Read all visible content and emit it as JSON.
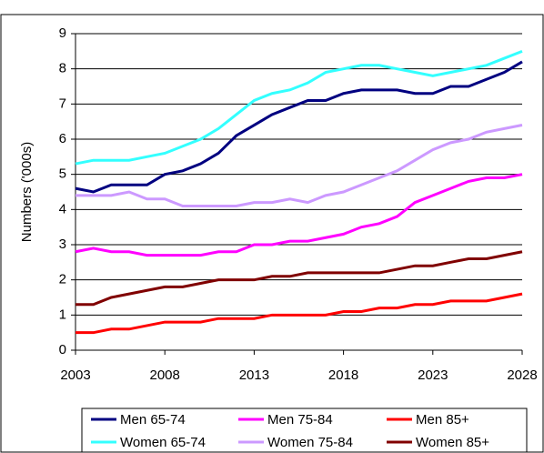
{
  "chart_data": {
    "type": "line",
    "y_label": "Numbers ('000s)",
    "x": [
      2003,
      2004,
      2005,
      2006,
      2007,
      2008,
      2009,
      2010,
      2011,
      2012,
      2013,
      2014,
      2015,
      2016,
      2017,
      2018,
      2019,
      2020,
      2021,
      2022,
      2023,
      2024,
      2025,
      2026,
      2027,
      2028
    ],
    "xlim": [
      2003,
      2028
    ],
    "xticks": [
      2003,
      2008,
      2013,
      2018,
      2023,
      2028
    ],
    "ylim": [
      0,
      9
    ],
    "yticks": [
      0,
      1,
      2,
      3,
      4,
      5,
      6,
      7,
      8,
      9
    ],
    "grid": true,
    "legend": "bottom",
    "series": [
      {
        "name": "Men 65-74",
        "color": "#000080",
        "values": [
          4.6,
          4.5,
          4.7,
          4.7,
          4.7,
          5.0,
          5.1,
          5.3,
          5.6,
          6.1,
          6.4,
          6.7,
          6.9,
          7.1,
          7.1,
          7.3,
          7.4,
          7.4,
          7.4,
          7.3,
          7.3,
          7.5,
          7.5,
          7.7,
          7.9,
          8.2
        ]
      },
      {
        "name": "Men 75-84",
        "color": "#ff00ff",
        "values": [
          2.8,
          2.9,
          2.8,
          2.8,
          2.7,
          2.7,
          2.7,
          2.7,
          2.8,
          2.8,
          3.0,
          3.0,
          3.1,
          3.1,
          3.2,
          3.3,
          3.5,
          3.6,
          3.8,
          4.2,
          4.4,
          4.6,
          4.8,
          4.9,
          4.9,
          5.0
        ]
      },
      {
        "name": "Men 85+",
        "color": "#ff0000",
        "values": [
          0.5,
          0.5,
          0.6,
          0.6,
          0.7,
          0.8,
          0.8,
          0.8,
          0.9,
          0.9,
          0.9,
          1.0,
          1.0,
          1.0,
          1.0,
          1.1,
          1.1,
          1.2,
          1.2,
          1.3,
          1.3,
          1.4,
          1.4,
          1.4,
          1.5,
          1.6
        ]
      },
      {
        "name": "Women 65-74",
        "color": "#33ffff",
        "values": [
          5.3,
          5.4,
          5.4,
          5.4,
          5.5,
          5.6,
          5.8,
          6.0,
          6.3,
          6.7,
          7.1,
          7.3,
          7.4,
          7.6,
          7.9,
          8.0,
          8.1,
          8.1,
          8.0,
          7.9,
          7.8,
          7.9,
          8.0,
          8.1,
          8.3,
          8.5
        ]
      },
      {
        "name": "Women 75-84",
        "color": "#cc99ff",
        "values": [
          4.4,
          4.4,
          4.4,
          4.5,
          4.3,
          4.3,
          4.1,
          4.1,
          4.1,
          4.1,
          4.2,
          4.2,
          4.3,
          4.2,
          4.4,
          4.5,
          4.7,
          4.9,
          5.1,
          5.4,
          5.7,
          5.9,
          6.0,
          6.2,
          6.3,
          6.4
        ]
      },
      {
        "name": "Women 85+",
        "color": "#800000",
        "values": [
          1.3,
          1.3,
          1.5,
          1.6,
          1.7,
          1.8,
          1.8,
          1.9,
          2.0,
          2.0,
          2.0,
          2.1,
          2.1,
          2.2,
          2.2,
          2.2,
          2.2,
          2.2,
          2.3,
          2.4,
          2.4,
          2.5,
          2.6,
          2.6,
          2.7,
          2.8
        ]
      }
    ]
  }
}
